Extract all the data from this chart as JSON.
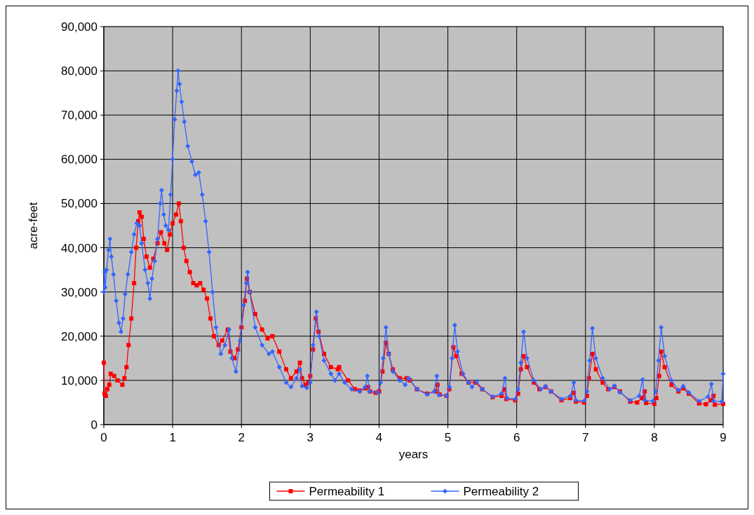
{
  "chart_data": {
    "type": "line",
    "xlabel": "years",
    "ylabel": "acre-feet",
    "xlim": [
      0,
      9
    ],
    "xticks": [
      0,
      1,
      2,
      3,
      4,
      5,
      6,
      7,
      8,
      9
    ],
    "ylim": [
      0,
      90000
    ],
    "yticks": [
      {
        "value": 0,
        "label": "0"
      },
      {
        "value": 10000,
        "label": "10,000"
      },
      {
        "value": 20000,
        "label": "20,000"
      },
      {
        "value": 30000,
        "label": "30,000"
      },
      {
        "value": 40000,
        "label": "40,000"
      },
      {
        "value": 50000,
        "label": "50,000"
      },
      {
        "value": 60000,
        "label": "60,000"
      },
      {
        "value": 70000,
        "label": "70,000"
      },
      {
        "value": 80000,
        "label": "80,000"
      },
      {
        "value": 90000,
        "label": "90,000"
      }
    ],
    "grid": true,
    "legend": "bottom",
    "series": [
      {
        "name": "Permeability 1",
        "color": "#ff0000",
        "marker": "square",
        "x": [
          0,
          0.01,
          0.03,
          0.05,
          0.08,
          0.1,
          0.15,
          0.2,
          0.27,
          0.3,
          0.33,
          0.36,
          0.4,
          0.44,
          0.47,
          0.5,
          0.52,
          0.55,
          0.58,
          0.62,
          0.67,
          0.72,
          0.78,
          0.83,
          0.88,
          0.92,
          0.96,
          1.0,
          1.05,
          1.09,
          1.12,
          1.16,
          1.2,
          1.25,
          1.3,
          1.35,
          1.4,
          1.45,
          1.5,
          1.55,
          1.6,
          1.67,
          1.72,
          1.8,
          1.84,
          1.9,
          1.95,
          2.0,
          2.05,
          2.08,
          2.12,
          2.2,
          2.3,
          2.38,
          2.45,
          2.55,
          2.65,
          2.72,
          2.8,
          2.85,
          2.88,
          2.93,
          2.97,
          3.0,
          3.04,
          3.08,
          3.12,
          3.2,
          3.3,
          3.4,
          3.42,
          3.55,
          3.65,
          3.72,
          3.8,
          3.84,
          3.87,
          3.95,
          4.0,
          4.05,
          4.1,
          4.14,
          4.2,
          4.3,
          4.4,
          4.45,
          4.55,
          4.7,
          4.82,
          4.85,
          4.88,
          4.98,
          5.02,
          5.08,
          5.12,
          5.2,
          5.3,
          5.4,
          5.5,
          5.65,
          5.78,
          5.82,
          5.85,
          5.98,
          6.02,
          6.06,
          6.1,
          6.15,
          6.25,
          6.33,
          6.42,
          6.5,
          6.65,
          6.78,
          6.83,
          6.86,
          6.98,
          7.02,
          7.05,
          7.1,
          7.15,
          7.25,
          7.33,
          7.42,
          7.5,
          7.65,
          7.75,
          7.82,
          7.86,
          7.88,
          8.0,
          8.03,
          8.07,
          8.1,
          8.15,
          8.25,
          8.35,
          8.42,
          8.5,
          8.65,
          8.75,
          8.82,
          8.86,
          8.88,
          9.0
        ],
        "values": [
          14000,
          7000,
          6500,
          8000,
          9000,
          11500,
          11000,
          10000,
          9000,
          10500,
          13000,
          18000,
          24000,
          32000,
          40000,
          46000,
          48000,
          47000,
          42000,
          38000,
          35500,
          37500,
          41000,
          43500,
          41000,
          39500,
          43000,
          45500,
          47500,
          50000,
          46000,
          40000,
          37000,
          34500,
          32000,
          31500,
          32000,
          30500,
          28500,
          24000,
          20000,
          18000,
          19000,
          21500,
          16500,
          15000,
          17000,
          22000,
          28000,
          33000,
          30000,
          25000,
          21500,
          19500,
          20000,
          16500,
          12500,
          10500,
          12000,
          14000,
          10500,
          9000,
          9500,
          11000,
          17000,
          24000,
          21000,
          16000,
          13000,
          12500,
          13000,
          10000,
          8000,
          7700,
          8200,
          8500,
          7500,
          7200,
          7500,
          12000,
          18500,
          16000,
          12500,
          10500,
          10500,
          10000,
          8000,
          7000,
          7500,
          9000,
          6800,
          6500,
          8000,
          17500,
          15500,
          11500,
          9500,
          9500,
          8000,
          6200,
          6500,
          8000,
          5800,
          5500,
          7000,
          12500,
          15500,
          13000,
          9500,
          8000,
          8500,
          7500,
          5500,
          6000,
          7200,
          5200,
          5000,
          6500,
          10500,
          16000,
          12500,
          9500,
          8000,
          8500,
          7500,
          5200,
          5000,
          6000,
          7500,
          4900,
          4700,
          6000,
          11000,
          16500,
          13000,
          9000,
          7500,
          8200,
          7000,
          4800,
          4600,
          5500,
          6500,
          4500,
          4700
        ]
      },
      {
        "name": "Permeability 2",
        "color": "#3366ff",
        "marker": "diamond",
        "x": [
          0,
          0.01,
          0.02,
          0.04,
          0.07,
          0.09,
          0.11,
          0.14,
          0.18,
          0.22,
          0.25,
          0.28,
          0.31,
          0.35,
          0.4,
          0.44,
          0.48,
          0.52,
          0.55,
          0.6,
          0.64,
          0.67,
          0.7,
          0.74,
          0.78,
          0.82,
          0.84,
          0.87,
          0.9,
          0.94,
          0.97,
          1.0,
          1.03,
          1.06,
          1.08,
          1.1,
          1.13,
          1.17,
          1.22,
          1.28,
          1.33,
          1.38,
          1.43,
          1.48,
          1.53,
          1.58,
          1.63,
          1.7,
          1.76,
          1.82,
          1.86,
          1.92,
          1.98,
          2.03,
          2.07,
          2.09,
          2.12,
          2.2,
          2.3,
          2.4,
          2.45,
          2.55,
          2.65,
          2.72,
          2.8,
          2.85,
          2.88,
          2.95,
          3.0,
          3.04,
          3.09,
          3.13,
          3.2,
          3.3,
          3.36,
          3.42,
          3.5,
          3.6,
          3.72,
          3.8,
          3.83,
          3.86,
          3.98,
          4.02,
          4.06,
          4.1,
          4.14,
          4.2,
          4.3,
          4.38,
          4.43,
          4.55,
          4.7,
          4.8,
          4.84,
          4.87,
          4.98,
          5.02,
          5.06,
          5.1,
          5.14,
          5.22,
          5.3,
          5.35,
          5.42,
          5.5,
          5.65,
          5.78,
          5.83,
          5.86,
          5.98,
          6.02,
          6.06,
          6.1,
          6.15,
          6.25,
          6.35,
          6.42,
          6.5,
          6.65,
          6.78,
          6.83,
          6.86,
          6.98,
          7.02,
          7.06,
          7.1,
          7.15,
          7.25,
          7.35,
          7.42,
          7.5,
          7.65,
          7.78,
          7.83,
          7.86,
          7.98,
          8.02,
          8.06,
          8.1,
          8.15,
          8.25,
          8.35,
          8.42,
          8.5,
          8.65,
          8.78,
          8.83,
          8.86,
          8.98,
          9.0
        ],
        "values": [
          30000,
          34500,
          31000,
          35000,
          39500,
          42000,
          38000,
          34000,
          28000,
          23000,
          21000,
          24000,
          29500,
          34000,
          39000,
          43000,
          45500,
          45000,
          41000,
          35000,
          32000,
          28500,
          33000,
          37000,
          42000,
          50000,
          53000,
          47500,
          45000,
          44000,
          52000,
          60000,
          69000,
          75500,
          80000,
          77000,
          73000,
          68500,
          63000,
          59500,
          56500,
          57000,
          52000,
          46000,
          39000,
          30000,
          22000,
          16000,
          18000,
          21500,
          15000,
          12000,
          19000,
          27000,
          32000,
          34500,
          30000,
          22000,
          18000,
          16000,
          16500,
          13000,
          9500,
          8500,
          10500,
          12500,
          8700,
          8300,
          9500,
          18000,
          25500,
          20000,
          14500,
          11500,
          10000,
          11500,
          9500,
          8000,
          7500,
          8500,
          11000,
          7500,
          7300,
          9500,
          15000,
          22000,
          16000,
          12000,
          10000,
          9000,
          10500,
          8000,
          6800,
          7500,
          11000,
          6700,
          6500,
          8500,
          15000,
          22500,
          16500,
          11500,
          9500,
          8500,
          9800,
          8000,
          6300,
          7000,
          10500,
          6000,
          5800,
          8000,
          14000,
          21000,
          15000,
          10000,
          8000,
          8700,
          7500,
          5800,
          6500,
          9500,
          5500,
          5400,
          7500,
          14500,
          21800,
          15000,
          10500,
          8000,
          8800,
          7300,
          5500,
          6500,
          10200,
          5500,
          5300,
          7500,
          14500,
          22000,
          15500,
          10000,
          7800,
          8700,
          7300,
          5300,
          6300,
          9200,
          5300,
          5200,
          11500
        ]
      }
    ]
  }
}
